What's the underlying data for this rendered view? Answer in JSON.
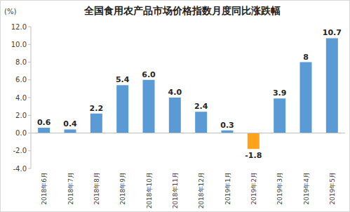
{
  "chart_data": {
    "type": "bar",
    "title": "全国食用农产品市场价格指数月度同比涨跌幅",
    "y_label": "(%)",
    "categories": [
      "2018年6月",
      "2018年7月",
      "2018年8月",
      "2018年9月",
      "2018年10月",
      "2018年11月",
      "2018年12月",
      "2019年1月",
      "2019年2月",
      "2019年3月",
      "2019年4月",
      "2019年5月"
    ],
    "values": [
      0.6,
      0.4,
      2.2,
      5.4,
      6.0,
      4.0,
      2.4,
      0.3,
      -1.8,
      3.9,
      8,
      10.7
    ],
    "value_labels": [
      "0.6",
      "0.4",
      "2.2",
      "5.4",
      "6.0",
      "4.0",
      "2.4",
      "0.3",
      "-1.8",
      "3.9",
      "8",
      "10.7"
    ],
    "colors": [
      "#5b9bd5",
      "#5b9bd5",
      "#5b9bd5",
      "#5b9bd5",
      "#5b9bd5",
      "#5b9bd5",
      "#5b9bd5",
      "#5b9bd5",
      "#ffa31a",
      "#5b9bd5",
      "#5b9bd5",
      "#5b9bd5"
    ],
    "ylim": [
      -4,
      12
    ],
    "yticks": [
      {
        "value": -4,
        "label": "-4.0"
      },
      {
        "value": -2,
        "label": "-2.0"
      },
      {
        "value": 0,
        "label": "0.0"
      },
      {
        "value": 2,
        "label": "2.0"
      },
      {
        "value": 4,
        "label": "4.0"
      },
      {
        "value": 6,
        "label": "6.0"
      },
      {
        "value": 8,
        "label": "8.0"
      },
      {
        "value": 10,
        "label": "10.0"
      },
      {
        "value": 12,
        "label": "12.0"
      }
    ],
    "grid": false,
    "data_labels": true
  }
}
